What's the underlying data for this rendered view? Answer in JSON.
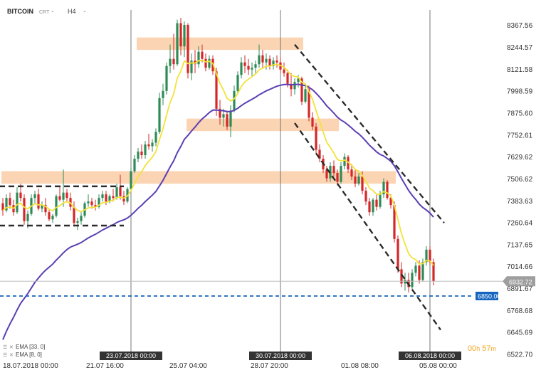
{
  "header": {
    "symbol": "BITCOIN",
    "type": "CRT",
    "timeframe": "H4"
  },
  "timer": {
    "hours_value": "00",
    "hours_unit": "h",
    "minutes_value": "57",
    "minutes_unit": "m"
  },
  "legend": {
    "ema_slow": "EMA [33, 0]",
    "ema_fast": "EMA [8, 0]"
  },
  "colors": {
    "bull": "#2e8b57",
    "bear": "#d62728",
    "ema_fast": "#f2e23a",
    "ema_slow": "#5b3fb3",
    "zone": "#f9c79a",
    "channel": "#2b2b2b",
    "price_tag": "#9e9e9e",
    "level_tag": "#1565c0"
  },
  "chart_data": {
    "type": "candlestick",
    "y_ticks": [
      "8367.56",
      "8244.57",
      "8121.58",
      "7998.59",
      "7875.60",
      "7752.61",
      "7629.62",
      "7506.62",
      "7383.63",
      "7260.64",
      "7137.65",
      "7014.66",
      "6891.67",
      "6768.68",
      "6645.69",
      "6522.70"
    ],
    "ylim": [
      6522.7,
      8398.31
    ],
    "x_labels": [
      "18.07.2018 00:00",
      "21.07 16:00",
      "25.07 04:00",
      "28.07 20:00",
      "01.08 08:00",
      "05.08 00:00"
    ],
    "vertical_lines": [
      {
        "label": "23.07.2018 00:00",
        "index": 36
      },
      {
        "label": "30.07.2018 00:00",
        "index": 78
      },
      {
        "label": "06.08.2018 00:00",
        "index": 120
      }
    ],
    "current_price": "6932.72",
    "level": {
      "label": "6850.00",
      "value": 6850.0
    },
    "zones": [
      {
        "from": 7480,
        "to": 7550,
        "start": 0,
        "end": 110
      },
      {
        "from": 7775,
        "to": 7845,
        "start": 52,
        "end": 94
      },
      {
        "from": 8230,
        "to": 8300,
        "start": 38,
        "end": 84
      }
    ],
    "candles": [
      [
        7370,
        7400,
        7300,
        7330
      ],
      [
        7330,
        7420,
        7320,
        7400
      ],
      [
        7400,
        7430,
        7340,
        7360
      ],
      [
        7360,
        7390,
        7300,
        7320
      ],
      [
        7320,
        7460,
        7310,
        7430
      ],
      [
        7430,
        7480,
        7380,
        7400
      ],
      [
        7400,
        7420,
        7250,
        7270
      ],
      [
        7270,
        7330,
        7230,
        7310
      ],
      [
        7310,
        7420,
        7300,
        7400
      ],
      [
        7400,
        7440,
        7370,
        7420
      ],
      [
        7420,
        7450,
        7330,
        7340
      ],
      [
        7340,
        7380,
        7320,
        7360
      ],
      [
        7360,
        7400,
        7300,
        7320
      ],
      [
        7320,
        7340,
        7270,
        7280
      ],
      [
        7280,
        7310,
        7260,
        7300
      ],
      [
        7300,
        7420,
        7290,
        7410
      ],
      [
        7410,
        7470,
        7380,
        7390
      ],
      [
        7390,
        7560,
        7350,
        7430
      ],
      [
        7430,
        7450,
        7380,
        7400
      ],
      [
        7400,
        7430,
        7330,
        7350
      ],
      [
        7350,
        7380,
        7240,
        7260
      ],
      [
        7260,
        7290,
        7220,
        7270
      ],
      [
        7270,
        7320,
        7250,
        7300
      ],
      [
        7300,
        7380,
        7290,
        7370
      ],
      [
        7370,
        7420,
        7350,
        7380
      ],
      [
        7380,
        7400,
        7340,
        7360
      ],
      [
        7360,
        7390,
        7330,
        7350
      ],
      [
        7350,
        7420,
        7340,
        7400
      ],
      [
        7400,
        7440,
        7380,
        7420
      ],
      [
        7420,
        7440,
        7360,
        7380
      ],
      [
        7380,
        7420,
        7370,
        7410
      ],
      [
        7410,
        7450,
        7380,
        7400
      ],
      [
        7400,
        7480,
        7390,
        7460
      ],
      [
        7460,
        7530,
        7390,
        7410
      ],
      [
        7410,
        7440,
        7360,
        7380
      ],
      [
        7380,
        7460,
        7370,
        7450
      ],
      [
        7450,
        7570,
        7440,
        7550
      ],
      [
        7550,
        7640,
        7540,
        7620
      ],
      [
        7620,
        7680,
        7600,
        7660
      ],
      [
        7660,
        7700,
        7620,
        7640
      ],
      [
        7640,
        7720,
        7620,
        7700
      ],
      [
        7700,
        7760,
        7670,
        7690
      ],
      [
        7690,
        7730,
        7660,
        7710
      ],
      [
        7710,
        7790,
        7690,
        7770
      ],
      [
        7770,
        7990,
        7760,
        7960
      ],
      [
        7960,
        8040,
        7920,
        8000
      ],
      [
        8000,
        8160,
        7980,
        8140
      ],
      [
        8140,
        8260,
        8100,
        8180
      ],
      [
        8180,
        8320,
        8120,
        8150
      ],
      [
        8150,
        8400,
        8140,
        8380
      ],
      [
        8380,
        8410,
        8200,
        8250
      ],
      [
        8250,
        8390,
        8190,
        8370
      ],
      [
        8370,
        8380,
        8070,
        8100
      ],
      [
        8100,
        8210,
        8060,
        8170
      ],
      [
        8170,
        8230,
        8100,
        8150
      ],
      [
        8150,
        8250,
        8130,
        8220
      ],
      [
        8220,
        8260,
        8160,
        8180
      ],
      [
        8180,
        8210,
        8110,
        8130
      ],
      [
        8130,
        8200,
        8120,
        8180
      ],
      [
        8180,
        8200,
        8090,
        8110
      ],
      [
        8110,
        8130,
        7860,
        7900
      ],
      [
        7900,
        7950,
        7810,
        7850
      ],
      [
        7850,
        7900,
        7800,
        7870
      ],
      [
        7870,
        7890,
        7780,
        7800
      ],
      [
        7800,
        7920,
        7740,
        7890
      ],
      [
        7890,
        8030,
        7880,
        8000
      ],
      [
        8000,
        8110,
        7990,
        8090
      ],
      [
        8090,
        8190,
        8070,
        8160
      ],
      [
        8160,
        8200,
        8100,
        8140
      ],
      [
        8140,
        8180,
        8090,
        8120
      ],
      [
        8120,
        8160,
        8080,
        8130
      ],
      [
        8130,
        8170,
        8100,
        8150
      ],
      [
        8150,
        8260,
        8130,
        8200
      ],
      [
        8200,
        8230,
        8130,
        8160
      ],
      [
        8160,
        8210,
        8120,
        8180
      ],
      [
        8180,
        8200,
        8120,
        8140
      ],
      [
        8140,
        8190,
        8120,
        8170
      ],
      [
        8170,
        8200,
        8130,
        8160
      ],
      [
        8160,
        8190,
        8100,
        8120
      ],
      [
        8120,
        8160,
        8080,
        8100
      ],
      [
        8100,
        8120,
        8020,
        8040
      ],
      [
        8040,
        8100,
        7970,
        8010
      ],
      [
        8010,
        8070,
        7980,
        8050
      ],
      [
        8050,
        8090,
        8020,
        8070
      ],
      [
        8070,
        8080,
        7920,
        7940
      ],
      [
        7940,
        8030,
        7930,
        8010
      ],
      [
        8010,
        8030,
        7830,
        7850
      ],
      [
        7850,
        7880,
        7780,
        7800
      ],
      [
        7800,
        7820,
        7650,
        7670
      ],
      [
        7670,
        7700,
        7600,
        7620
      ],
      [
        7620,
        7640,
        7540,
        7560
      ],
      [
        7560,
        7580,
        7490,
        7510
      ],
      [
        7510,
        7600,
        7490,
        7580
      ],
      [
        7580,
        7610,
        7520,
        7540
      ],
      [
        7540,
        7560,
        7470,
        7490
      ],
      [
        7490,
        7600,
        7480,
        7580
      ],
      [
        7580,
        7650,
        7560,
        7630
      ],
      [
        7630,
        7640,
        7540,
        7560
      ],
      [
        7560,
        7590,
        7500,
        7520
      ],
      [
        7520,
        7560,
        7460,
        7480
      ],
      [
        7480,
        7540,
        7470,
        7520
      ],
      [
        7520,
        7550,
        7420,
        7440
      ],
      [
        7440,
        7460,
        7360,
        7380
      ],
      [
        7380,
        7400,
        7300,
        7320
      ],
      [
        7320,
        7400,
        7300,
        7390
      ],
      [
        7390,
        7420,
        7330,
        7350
      ],
      [
        7350,
        7440,
        7340,
        7420
      ],
      [
        7420,
        7510,
        7400,
        7490
      ],
      [
        7490,
        7500,
        7390,
        7400
      ],
      [
        7400,
        7420,
        7340,
        7360
      ],
      [
        7360,
        7380,
        7150,
        7170
      ],
      [
        7170,
        7190,
        6980,
        7000
      ],
      [
        7000,
        7040,
        6900,
        6920
      ],
      [
        6920,
        6980,
        6880,
        6940
      ],
      [
        6940,
        6980,
        6870,
        6900
      ],
      [
        6900,
        7000,
        6890,
        6980
      ],
      [
        6980,
        7040,
        6960,
        7020
      ],
      [
        7020,
        7050,
        6920,
        6940
      ],
      [
        6940,
        7060,
        6930,
        7040
      ],
      [
        7040,
        7130,
        7020,
        7110
      ],
      [
        7110,
        7130,
        7020,
        7040
      ],
      [
        7040,
        7060,
        6910,
        6933
      ]
    ]
  }
}
